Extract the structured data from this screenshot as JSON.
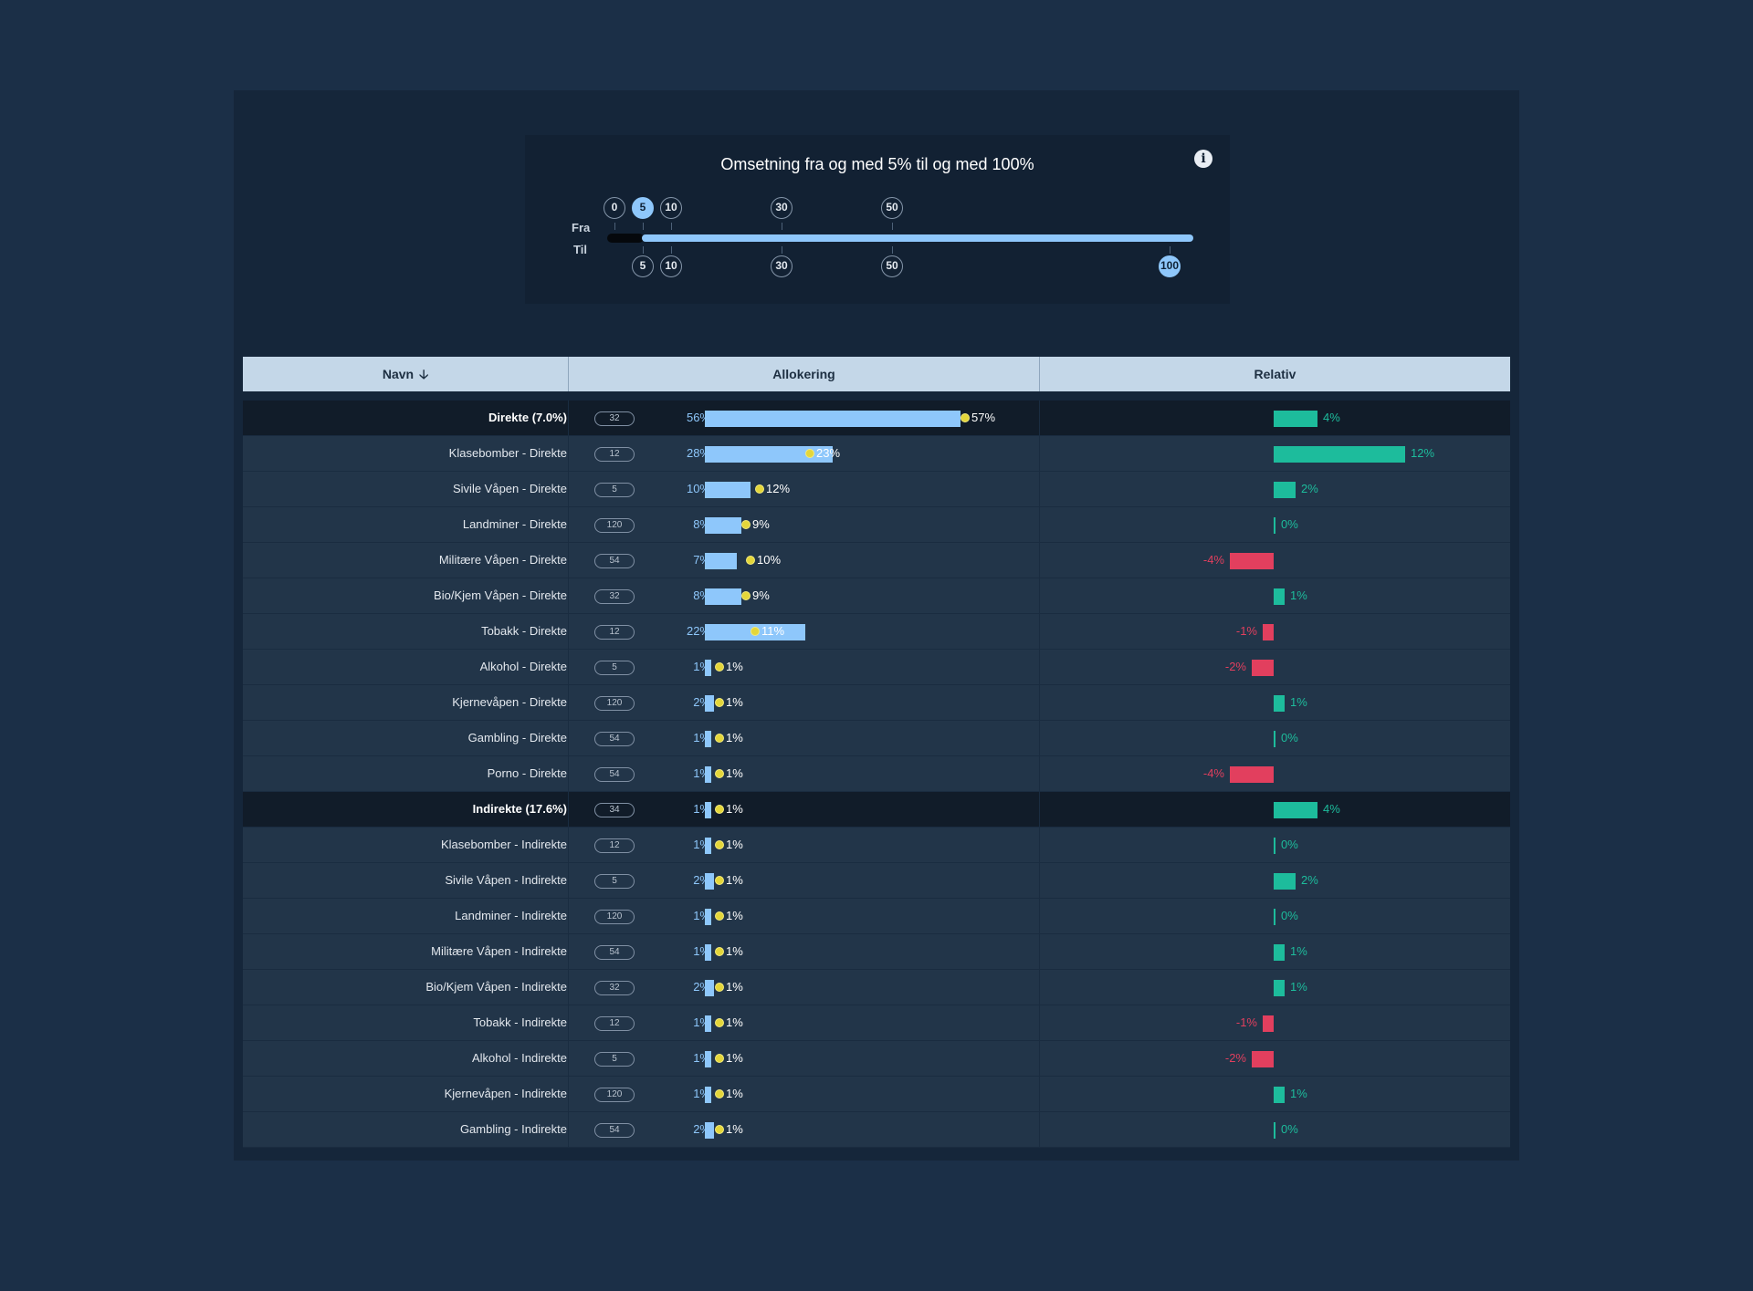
{
  "filter": {
    "title": "Omsetning fra og med 5% til og med 100%",
    "info_icon": "info-icon",
    "from_label": "Fra",
    "to_label": "Til",
    "from_steps": [
      {
        "label": "0",
        "selected": false
      },
      {
        "label": "5",
        "selected": true
      },
      {
        "label": "10",
        "selected": false
      },
      {
        "label": "30",
        "selected": false
      },
      {
        "label": "50",
        "selected": false
      }
    ],
    "to_steps": [
      {
        "label": "5",
        "selected": false
      },
      {
        "label": "10",
        "selected": false
      },
      {
        "label": "30",
        "selected": false
      },
      {
        "label": "50",
        "selected": false
      },
      {
        "label": "100",
        "selected": true
      }
    ]
  },
  "table": {
    "columns": {
      "name": "Navn",
      "allocation": "Allokering",
      "relative": "Relativ"
    },
    "sort_icon": "arrow-down-icon",
    "rows": [
      {
        "name": "Direkte (7.0%)",
        "group": true,
        "count": "32",
        "alloc": 56,
        "alloc_label": "56%",
        "bench": 57,
        "bench_label": "57%",
        "rel": 4,
        "rel_label": "4%"
      },
      {
        "name": "Klasebomber - Direkte",
        "group": false,
        "count": "12",
        "alloc": 28,
        "alloc_label": "28%",
        "bench": 23,
        "bench_label": "23%",
        "rel": 12,
        "rel_label": "12%"
      },
      {
        "name": "Sivile Våpen - Direkte",
        "group": false,
        "count": "5",
        "alloc": 10,
        "alloc_label": "10%",
        "bench": 12,
        "bench_label": "12%",
        "rel": 2,
        "rel_label": "2%"
      },
      {
        "name": "Landminer - Direkte",
        "group": false,
        "count": "120",
        "alloc": 8,
        "alloc_label": "8%",
        "bench": 9,
        "bench_label": "9%",
        "rel": 0,
        "rel_label": "0%"
      },
      {
        "name": "Militære Våpen - Direkte",
        "group": false,
        "count": "54",
        "alloc": 7,
        "alloc_label": "7%",
        "bench": 10,
        "bench_label": "10%",
        "rel": -4,
        "rel_label": "-4%"
      },
      {
        "name": "Bio/Kjem Våpen - Direkte",
        "group": false,
        "count": "32",
        "alloc": 8,
        "alloc_label": "8%",
        "bench": 9,
        "bench_label": "9%",
        "rel": 1,
        "rel_label": "1%"
      },
      {
        "name": "Tobakk - Direkte",
        "group": false,
        "count": "12",
        "alloc": 22,
        "alloc_label": "22%",
        "bench": 11,
        "bench_label": "11%",
        "rel": -1,
        "rel_label": "-1%"
      },
      {
        "name": "Alkohol - Direkte",
        "group": false,
        "count": "5",
        "alloc": 1,
        "alloc_label": "1%",
        "bench": 1,
        "bench_label": "1%",
        "rel": -2,
        "rel_label": "-2%"
      },
      {
        "name": "Kjernevåpen - Direkte",
        "group": false,
        "count": "120",
        "alloc": 2,
        "alloc_label": "2%",
        "bench": 1,
        "bench_label": "1%",
        "rel": 1,
        "rel_label": "1%"
      },
      {
        "name": "Gambling - Direkte",
        "group": false,
        "count": "54",
        "alloc": 1,
        "alloc_label": "1%",
        "bench": 1,
        "bench_label": "1%",
        "rel": 0,
        "rel_label": "0%"
      },
      {
        "name": "Porno - Direkte",
        "group": false,
        "count": "54",
        "alloc": 1,
        "alloc_label": "1%",
        "bench": 1,
        "bench_label": "1%",
        "rel": -4,
        "rel_label": "-4%"
      },
      {
        "name": "Indirekte (17.6%)",
        "group": true,
        "count": "34",
        "alloc": 1,
        "alloc_label": "1%",
        "bench": 1,
        "bench_label": "1%",
        "rel": 4,
        "rel_label": "4%"
      },
      {
        "name": "Klasebomber - Indirekte",
        "group": false,
        "count": "12",
        "alloc": 1,
        "alloc_label": "1%",
        "bench": 1,
        "bench_label": "1%",
        "rel": 0,
        "rel_label": "0%"
      },
      {
        "name": "Sivile Våpen - Indirekte",
        "group": false,
        "count": "5",
        "alloc": 2,
        "alloc_label": "2%",
        "bench": 1,
        "bench_label": "1%",
        "rel": 2,
        "rel_label": "2%"
      },
      {
        "name": "Landminer - Indirekte",
        "group": false,
        "count": "120",
        "alloc": 1,
        "alloc_label": "1%",
        "bench": 1,
        "bench_label": "1%",
        "rel": 0,
        "rel_label": "0%"
      },
      {
        "name": "Militære Våpen - Indirekte",
        "group": false,
        "count": "54",
        "alloc": 1,
        "alloc_label": "1%",
        "bench": 1,
        "bench_label": "1%",
        "rel": 1,
        "rel_label": "1%"
      },
      {
        "name": "Bio/Kjem Våpen - Indirekte",
        "group": false,
        "count": "32",
        "alloc": 2,
        "alloc_label": "2%",
        "bench": 1,
        "bench_label": "1%",
        "rel": 1,
        "rel_label": "1%"
      },
      {
        "name": "Tobakk - Indirekte",
        "group": false,
        "count": "12",
        "alloc": 1,
        "alloc_label": "1%",
        "bench": 1,
        "bench_label": "1%",
        "rel": -1,
        "rel_label": "-1%"
      },
      {
        "name": "Alkohol - Indirekte",
        "group": false,
        "count": "5",
        "alloc": 1,
        "alloc_label": "1%",
        "bench": 1,
        "bench_label": "1%",
        "rel": -2,
        "rel_label": "-2%"
      },
      {
        "name": "Kjernevåpen - Indirekte",
        "group": false,
        "count": "120",
        "alloc": 1,
        "alloc_label": "1%",
        "bench": 1,
        "bench_label": "1%",
        "rel": 1,
        "rel_label": "1%"
      },
      {
        "name": "Gambling - Indirekte",
        "group": false,
        "count": "54",
        "alloc": 2,
        "alloc_label": "2%",
        "bench": 1,
        "bench_label": "1%",
        "rel": 0,
        "rel_label": "0%"
      }
    ]
  },
  "colors": {
    "page_bg": "#1b2f47",
    "alloc_bar": "#8ec7fb",
    "bench_dot": "#e4d63a",
    "positive": "#1dbc9c",
    "negative": "#e23f5e",
    "header_bg": "#c4d7e8"
  }
}
